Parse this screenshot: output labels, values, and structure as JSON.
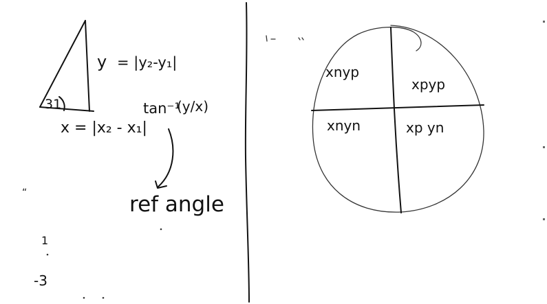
{
  "left_panel": {
    "y_label": "y",
    "y_formula": "= |y₂-y₁|",
    "angle_label": "31",
    "x_formula": "x = |x₂ - x₁|",
    "arctan": "tan⁻¹",
    "arctan_arg": "(y/x)",
    "ref_angle": "ref angle",
    "stray_marks": [
      "“",
      "1",
      "-3"
    ]
  },
  "right_panel": {
    "quadrants": {
      "top_left": "xnyp",
      "top_right": "xpyp",
      "bottom_left": "xnyn",
      "bottom_right": "xp yn"
    }
  },
  "colors": {
    "ink": "#111111",
    "background": "#ffffff",
    "right_edge": "#6a6a6a"
  }
}
